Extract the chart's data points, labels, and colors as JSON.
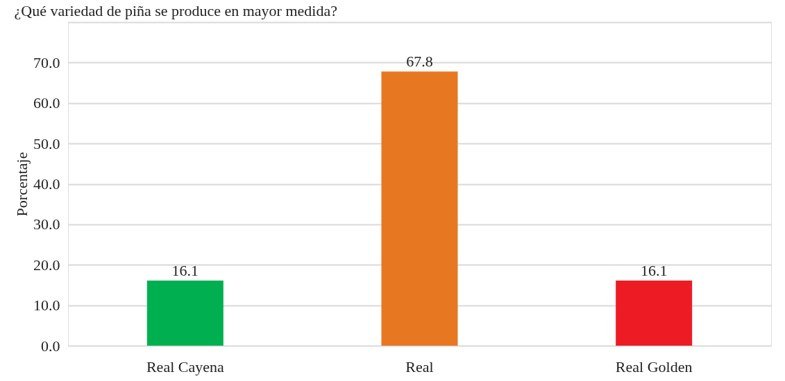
{
  "chart_data": {
    "type": "bar",
    "title": "¿Qué variedad de piña se produce en mayor medida?",
    "ylabel": "Porcentaje",
    "categories": [
      "Real Cayena",
      "Real",
      "Real Golden"
    ],
    "values": [
      16.1,
      67.8,
      16.1
    ],
    "colors": [
      "#00b050",
      "#e87722",
      "#ed1c24"
    ],
    "ylim": [
      0,
      80
    ],
    "yticks": [
      {
        "value": 0,
        "label": "0.0"
      },
      {
        "value": 10,
        "label": "10.0"
      },
      {
        "value": 20,
        "label": "20.0"
      },
      {
        "value": 30,
        "label": "30.0"
      },
      {
        "value": 40,
        "label": "40.0"
      },
      {
        "value": 50,
        "label": "50.0"
      },
      {
        "value": 60,
        "label": "60.0"
      },
      {
        "value": 70,
        "label": "70.0"
      },
      {
        "value": 80,
        "label": null
      }
    ],
    "grid": "y",
    "data_labels": true
  }
}
